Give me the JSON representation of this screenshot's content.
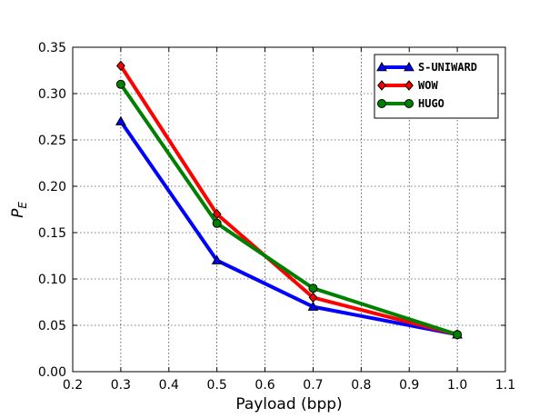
{
  "chart_data": {
    "type": "line",
    "title": "",
    "xlabel": "Payload (bpp)",
    "ylabel": "P_E",
    "ylabel_main": "P",
    "ylabel_sub": "E",
    "xlim": [
      0.2,
      1.1
    ],
    "ylim": [
      0.0,
      0.35
    ],
    "xticks": [
      0.2,
      0.3,
      0.4,
      0.5,
      0.6,
      0.7,
      0.8,
      0.9,
      1.0,
      1.1
    ],
    "yticks": [
      0.0,
      0.05,
      0.1,
      0.15,
      0.2,
      0.25,
      0.3,
      0.35
    ],
    "xtick_labels": [
      "0.2",
      "0.3",
      "0.4",
      "0.5",
      "0.6",
      "0.7",
      "0.8",
      "0.9",
      "1.0",
      "1.1"
    ],
    "ytick_labels": [
      "0.00",
      "0.05",
      "0.10",
      "0.15",
      "0.20",
      "0.25",
      "0.30",
      "0.35"
    ],
    "grid": true,
    "legend_position": "top-right",
    "x": [
      0.3,
      0.5,
      0.7,
      1.0
    ],
    "series": [
      {
        "name": "S-UNIWARD",
        "values": [
          0.27,
          0.12,
          0.07,
          0.04
        ],
        "color": "#0000ff",
        "marker": "triangle"
      },
      {
        "name": "WOW",
        "values": [
          0.33,
          0.17,
          0.08,
          0.04
        ],
        "color": "#ff0000",
        "marker": "diamond"
      },
      {
        "name": "HUGO",
        "values": [
          0.31,
          0.16,
          0.09,
          0.04
        ],
        "color": "#008000",
        "marker": "circle"
      }
    ]
  }
}
